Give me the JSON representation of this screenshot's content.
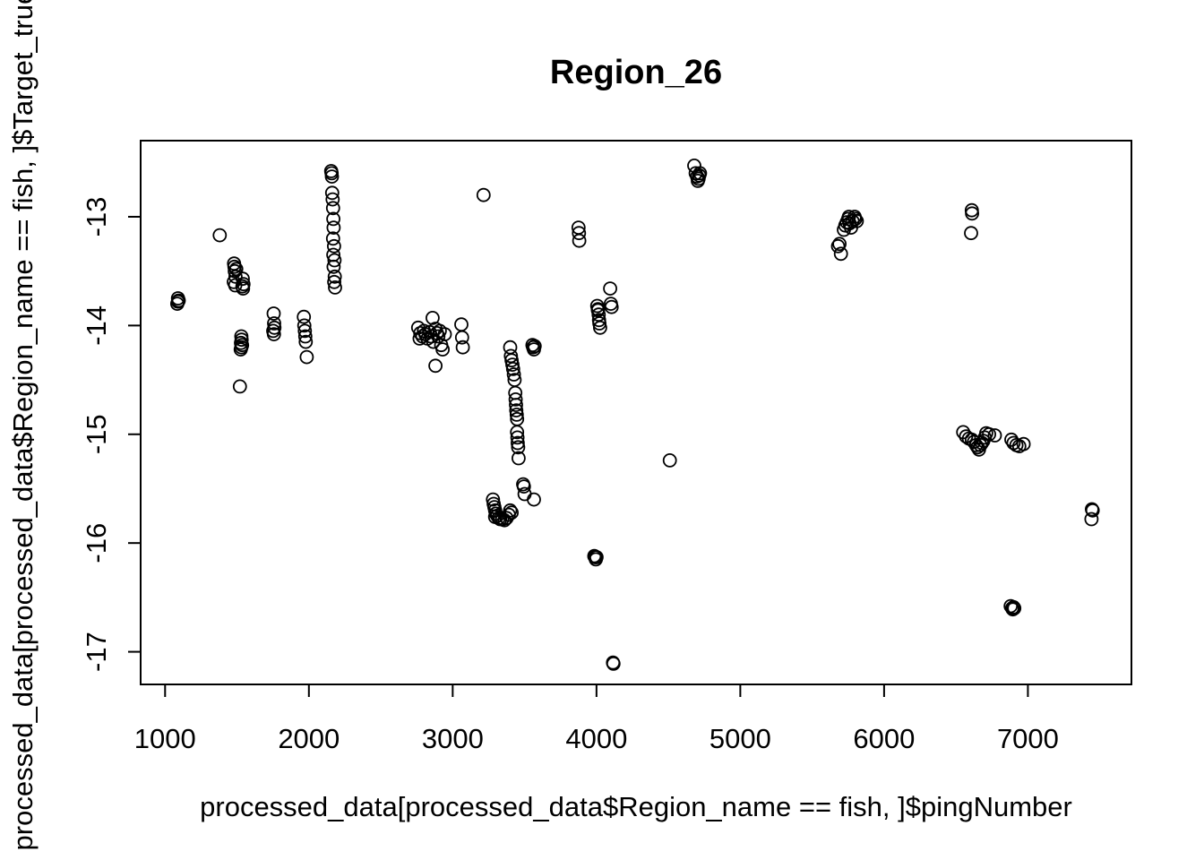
{
  "chart_data": {
    "type": "scatter",
    "title": "Region_26",
    "xlabel": "processed_data[processed_data$Region_name == fish, ]$pingNumber",
    "ylabel": "processed_data[processed_data$Region_name == fish, ]$Target_true_",
    "xlim": [
      830,
      7720
    ],
    "ylim": [
      -17.3,
      -12.3
    ],
    "xticks": [
      1000,
      2000,
      3000,
      4000,
      5000,
      6000,
      7000
    ],
    "yticks": [
      -17,
      -16,
      -15,
      -14,
      -13
    ],
    "xtick_labels": [
      "1000",
      "2000",
      "3000",
      "4000",
      "5000",
      "6000",
      "7000"
    ],
    "ytick_labels": [
      "-17",
      "-16",
      "-15",
      "-14",
      "-13"
    ],
    "grid": false,
    "marker": "open-circle",
    "points": [
      [
        1090,
        -13.75
      ],
      [
        1090,
        -13.78
      ],
      [
        1085,
        -13.8
      ],
      [
        1095,
        -13.77
      ],
      [
        1380,
        -13.17
      ],
      [
        1480,
        -13.43
      ],
      [
        1482,
        -13.46
      ],
      [
        1485,
        -13.5
      ],
      [
        1490,
        -13.55
      ],
      [
        1478,
        -13.6
      ],
      [
        1488,
        -13.63
      ],
      [
        1495,
        -13.48
      ],
      [
        1540,
        -13.57
      ],
      [
        1545,
        -13.62
      ],
      [
        1542,
        -13.66
      ],
      [
        1538,
        -13.64
      ],
      [
        1530,
        -14.1
      ],
      [
        1532,
        -14.13
      ],
      [
        1528,
        -14.16
      ],
      [
        1535,
        -14.18
      ],
      [
        1530,
        -14.2
      ],
      [
        1526,
        -14.22
      ],
      [
        1520,
        -14.56
      ],
      [
        1755,
        -13.89
      ],
      [
        1758,
        -13.98
      ],
      [
        1760,
        -14.02
      ],
      [
        1752,
        -14.05
      ],
      [
        1757,
        -14.08
      ],
      [
        1965,
        -13.92
      ],
      [
        1968,
        -14.0
      ],
      [
        1972,
        -14.05
      ],
      [
        1975,
        -14.1
      ],
      [
        1978,
        -14.15
      ],
      [
        1985,
        -14.29
      ],
      [
        2155,
        -12.58
      ],
      [
        2158,
        -12.6
      ],
      [
        2160,
        -12.63
      ],
      [
        2162,
        -12.78
      ],
      [
        2165,
        -12.84
      ],
      [
        2168,
        -12.92
      ],
      [
        2170,
        -13.02
      ],
      [
        2172,
        -13.1
      ],
      [
        2168,
        -13.2
      ],
      [
        2175,
        -13.27
      ],
      [
        2170,
        -13.35
      ],
      [
        2178,
        -13.4
      ],
      [
        2172,
        -13.46
      ],
      [
        2180,
        -13.55
      ],
      [
        2176,
        -13.6
      ],
      [
        2182,
        -13.65
      ],
      [
        2760,
        -14.02
      ],
      [
        2775,
        -14.07
      ],
      [
        2790,
        -14.1
      ],
      [
        2800,
        -14.05
      ],
      [
        2810,
        -14.08
      ],
      [
        2825,
        -14.12
      ],
      [
        2840,
        -14.06
      ],
      [
        2850,
        -14.1
      ],
      [
        2860,
        -13.93
      ],
      [
        2865,
        -14.15
      ],
      [
        2880,
        -14.03
      ],
      [
        2890,
        -14.07
      ],
      [
        2900,
        -14.1
      ],
      [
        2910,
        -14.05
      ],
      [
        2920,
        -14.18
      ],
      [
        2930,
        -14.22
      ],
      [
        2945,
        -14.08
      ],
      [
        2770,
        -14.12
      ],
      [
        2880,
        -14.37
      ],
      [
        3060,
        -13.99
      ],
      [
        3065,
        -14.11
      ],
      [
        3070,
        -14.2
      ],
      [
        3215,
        -12.8
      ],
      [
        3280,
        -15.6
      ],
      [
        3285,
        -15.64
      ],
      [
        3290,
        -15.67
      ],
      [
        3295,
        -15.7
      ],
      [
        3300,
        -15.73
      ],
      [
        3310,
        -15.75
      ],
      [
        3320,
        -15.77
      ],
      [
        3330,
        -15.78
      ],
      [
        3345,
        -15.78
      ],
      [
        3360,
        -15.79
      ],
      [
        3375,
        -15.77
      ],
      [
        3390,
        -15.74
      ],
      [
        3400,
        -15.7
      ],
      [
        3410,
        -15.72
      ],
      [
        3295,
        -15.76
      ],
      [
        3400,
        -14.2
      ],
      [
        3405,
        -14.28
      ],
      [
        3410,
        -14.32
      ],
      [
        3415,
        -14.36
      ],
      [
        3420,
        -14.4
      ],
      [
        3425,
        -14.45
      ],
      [
        3430,
        -14.5
      ],
      [
        3435,
        -14.62
      ],
      [
        3438,
        -14.68
      ],
      [
        3440,
        -14.73
      ],
      [
        3442,
        -14.78
      ],
      [
        3445,
        -14.82
      ],
      [
        3448,
        -14.98
      ],
      [
        3450,
        -15.03
      ],
      [
        3452,
        -15.08
      ],
      [
        3455,
        -15.12
      ],
      [
        3458,
        -15.22
      ],
      [
        3448,
        -14.86
      ],
      [
        3490,
        -15.46
      ],
      [
        3495,
        -15.48
      ],
      [
        3500,
        -15.55
      ],
      [
        3565,
        -15.6
      ],
      [
        3555,
        -14.18
      ],
      [
        3560,
        -14.2
      ],
      [
        3565,
        -14.22
      ],
      [
        3570,
        -14.19
      ],
      [
        3875,
        -13.1
      ],
      [
        3878,
        -13.15
      ],
      [
        3880,
        -13.22
      ],
      [
        3985,
        -16.12
      ],
      [
        3990,
        -16.13
      ],
      [
        3995,
        -16.15
      ],
      [
        4000,
        -16.13
      ],
      [
        4005,
        -13.82
      ],
      [
        4010,
        -13.86
      ],
      [
        4015,
        -13.9
      ],
      [
        4018,
        -13.95
      ],
      [
        4020,
        -13.98
      ],
      [
        4025,
        -14.02
      ],
      [
        4010,
        -13.85
      ],
      [
        4095,
        -13.66
      ],
      [
        4100,
        -13.8
      ],
      [
        4105,
        -13.83
      ],
      [
        4115,
        -17.1
      ],
      [
        4118,
        -17.11
      ],
      [
        4510,
        -15.24
      ],
      [
        4680,
        -12.53
      ],
      [
        4690,
        -12.6
      ],
      [
        4700,
        -12.63
      ],
      [
        4705,
        -12.67
      ],
      [
        4710,
        -12.65
      ],
      [
        4715,
        -12.62
      ],
      [
        4720,
        -12.6
      ],
      [
        5680,
        -13.27
      ],
      [
        5690,
        -13.25
      ],
      [
        5700,
        -13.34
      ],
      [
        5720,
        -13.12
      ],
      [
        5730,
        -13.08
      ],
      [
        5740,
        -13.05
      ],
      [
        5750,
        -13.02
      ],
      [
        5755,
        -13.0
      ],
      [
        5760,
        -13.06
      ],
      [
        5770,
        -13.1
      ],
      [
        5780,
        -13.04
      ],
      [
        5795,
        -13.0
      ],
      [
        5800,
        -13.02
      ],
      [
        5810,
        -13.04
      ],
      [
        6610,
        -12.94
      ],
      [
        6612,
        -12.97
      ],
      [
        6605,
        -13.15
      ],
      [
        6550,
        -14.98
      ],
      [
        6570,
        -15.02
      ],
      [
        6590,
        -15.04
      ],
      [
        6610,
        -15.05
      ],
      [
        6625,
        -15.07
      ],
      [
        6640,
        -15.1
      ],
      [
        6650,
        -15.12
      ],
      [
        6660,
        -15.14
      ],
      [
        6670,
        -15.1
      ],
      [
        6680,
        -15.08
      ],
      [
        6690,
        -15.06
      ],
      [
        6700,
        -15.03
      ],
      [
        6710,
        -14.99
      ],
      [
        6730,
        -15.0
      ],
      [
        6770,
        -15.01
      ],
      [
        6885,
        -15.05
      ],
      [
        6900,
        -15.08
      ],
      [
        6920,
        -15.1
      ],
      [
        6940,
        -15.11
      ],
      [
        6970,
        -15.09
      ],
      [
        6880,
        -16.58
      ],
      [
        6890,
        -16.6
      ],
      [
        6895,
        -16.61
      ],
      [
        6900,
        -16.59
      ],
      [
        6905,
        -16.6
      ],
      [
        7445,
        -15.69
      ],
      [
        7450,
        -15.7
      ],
      [
        7442,
        -15.78
      ]
    ]
  }
}
